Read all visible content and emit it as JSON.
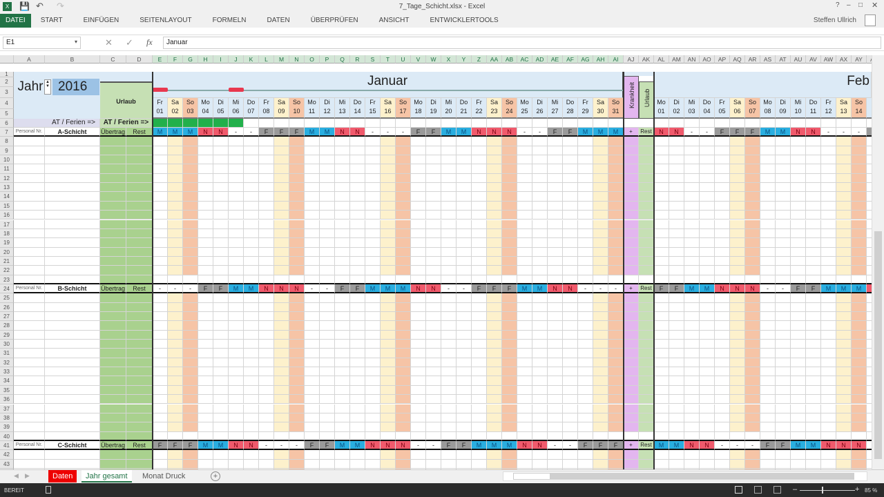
{
  "window": {
    "title": "7_Tage_Schicht.xlsx - Excel",
    "user": "Steffen Ullrich"
  },
  "ribbon": {
    "tabs": [
      "DATEI",
      "START",
      "EINFÜGEN",
      "SEITENLAYOUT",
      "FORMELN",
      "DATEN",
      "ÜBERPRÜFEN",
      "ANSICHT",
      "ENTWICKLERTOOLS"
    ],
    "active": "DATEI"
  },
  "formula": {
    "name_box": "E1",
    "value": "Januar",
    "fx": "fx"
  },
  "columns": {
    "left": [
      "A",
      "B",
      "C",
      "D"
    ],
    "jan": [
      "E",
      "F",
      "G",
      "H",
      "I",
      "J",
      "K",
      "L",
      "M",
      "N",
      "O",
      "P",
      "Q",
      "R",
      "S",
      "T",
      "U",
      "V",
      "W",
      "X",
      "Y",
      "Z",
      "AA",
      "AB",
      "AC",
      "AD",
      "AE",
      "AF",
      "AG",
      "AH",
      "AI"
    ],
    "extra": [
      "AJ",
      "AK"
    ],
    "feb": [
      "AL",
      "AM",
      "AN",
      "AO",
      "AP",
      "AQ",
      "AR",
      "AS",
      "AT",
      "AU",
      "AV",
      "AW",
      "AX",
      "AY",
      "AZ"
    ]
  },
  "header": {
    "jahr_label": "Jahr",
    "year": "2016",
    "urlaub": "Urlaub",
    "at_ferien": "AT / Ferien =>",
    "month1": "Januar",
    "month2": "Feb",
    "krankheit": "Krankheit",
    "urlaub_col": "Urlaub"
  },
  "jan": {
    "weekdays": [
      "Fr",
      "Sa",
      "So",
      "Mo",
      "Di",
      "Mi",
      "Do",
      "Fr",
      "Sa",
      "So",
      "Mo",
      "Di",
      "Mi",
      "Do",
      "Fr",
      "Sa",
      "So",
      "Mo",
      "Di",
      "Mi",
      "Do",
      "Fr",
      "Sa",
      "So",
      "Mo",
      "Di",
      "Mi",
      "Do",
      "Fr",
      "Sa",
      "So"
    ],
    "days": [
      "01",
      "02",
      "03",
      "04",
      "05",
      "06",
      "07",
      "08",
      "09",
      "10",
      "11",
      "12",
      "13",
      "14",
      "15",
      "16",
      "17",
      "18",
      "19",
      "20",
      "21",
      "22",
      "23",
      "24",
      "25",
      "26",
      "27",
      "28",
      "29",
      "30",
      "31"
    ],
    "holidays": [
      "01",
      "06"
    ],
    "at_ferien_days": [
      "01",
      "02",
      "03",
      "04",
      "05",
      "06"
    ]
  },
  "feb": {
    "weekdays": [
      "Mo",
      "Di",
      "Mi",
      "Do",
      "Fr",
      "Sa",
      "So",
      "Mo",
      "Di",
      "Mi",
      "Do",
      "Fr",
      "Sa",
      "So",
      "M"
    ],
    "days": [
      "01",
      "02",
      "03",
      "04",
      "05",
      "06",
      "07",
      "08",
      "09",
      "10",
      "11",
      "12",
      "13",
      "14",
      "1"
    ]
  },
  "blocks": [
    {
      "row": 7,
      "personal": "Personal Nr.",
      "name": "A-Schicht",
      "uebertrag": "Übertrag",
      "rest": "Rest",
      "krank": "+",
      "urlaub": "Rest",
      "jan": "MMMNN--FFFMMNN---FFMMNNN--FFMMM",
      "feb": "NN--FFFMMNN---F"
    },
    {
      "row": 24,
      "personal": "Personal Nr.",
      "name": "B-Schicht",
      "uebertrag": "Übertrag",
      "rest": "Rest",
      "krank": "+",
      "urlaub": "Rest",
      "jan": "---FFMMNNN--FFMMMNN--FFFMMNN---",
      "feb": "FFMMNNN--FFMMMN"
    },
    {
      "row": 41,
      "personal": "Personal Nr.",
      "name": "C-Schicht",
      "uebertrag": "Übertrag",
      "rest": "Rest",
      "krank": "+",
      "urlaub": "Rest",
      "jan": "FFFMMNN---FFMMNNN--FFMMMNN--FFF",
      "feb": "MMNN---FFMMNNN-"
    }
  ],
  "colors": {
    "M": "#29aee0",
    "N": "#f05a6c",
    "F": "#9a9a9a",
    "-": "#ffffff",
    "sat": "#fdf1cc",
    "sun": "#f6c4a6",
    "green": "#a9d18e",
    "green_light": "#c6e0b4",
    "krank": "#e3b6ef",
    "header_blue": "#dceaf6",
    "year_box": "#9cc2e5",
    "at_ferien": "#22b04b",
    "holiday": "#e8384f",
    "accent": "#217346"
  },
  "sheets": {
    "tabs": [
      "Daten",
      "Jahr gesamt",
      "Monat Druck"
    ],
    "active": "Jahr gesamt"
  },
  "status": {
    "text": "BEREIT",
    "zoom": "85 %"
  }
}
